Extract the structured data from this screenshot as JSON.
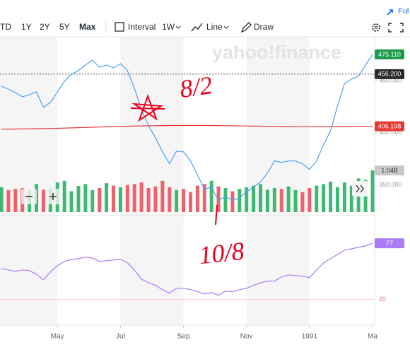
{
  "toolbar": {
    "ranges": [
      "TD",
      "1Y",
      "2Y",
      "5Y",
      "Max"
    ],
    "interval_label": "Interval",
    "interval": "1W",
    "chart_style": "Line",
    "draw": "Draw",
    "fullscreen": "Ful"
  },
  "watermark": "yahoo!finance",
  "annotations": [
    "8/2",
    "10/8"
  ],
  "chart_data": [
    {
      "type": "line",
      "categories": [
        null,
        null,
        null,
        null,
        null,
        null,
        null,
        null,
        "May",
        null,
        null,
        null,
        null,
        null,
        null,
        null,
        null,
        "Jul",
        null,
        null,
        null,
        null,
        null,
        null,
        null,
        null,
        "Sep",
        null,
        null,
        null,
        null,
        null,
        null,
        null,
        null,
        "Nov",
        null,
        null,
        null,
        null,
        null,
        null,
        null,
        null,
        "1991",
        null,
        null,
        null,
        null,
        null,
        null,
        null,
        null,
        "Ma"
      ],
      "series": [
        {
          "color": "#4a9ff5",
          "values": [
            444.6,
            441.9,
            438.5,
            434.5,
            436.5,
            439.2,
            424.3,
            429.1,
            439.2,
            449.3,
            456.1,
            459.5,
            464.9,
            469.6,
            462.8,
            464.9,
            462.2,
            466.2,
            459.5,
            442.6,
            422.3,
            406.8,
            395.3,
            381.8,
            370.3,
            382.4,
            381.8,
            373,
            359.5,
            345.9,
            348,
            335.1,
            339.2,
            335.1,
            337.8,
            343.2,
            348,
            352.7,
            361.5,
            373,
            371.6,
            373,
            373,
            370.3,
            364.9,
            373,
            388.5,
            402,
            425.7,
            447.3,
            451.4,
            454.1,
            464.9,
            475.11
          ]
        },
        {
          "color": "#e53935",
          "values": [
            403.4,
            403.5,
            403.6,
            403.7,
            403.8,
            403.9,
            404,
            404.1,
            404.3,
            404.5,
            404.7,
            404.9,
            405.1,
            405.3,
            405.5,
            405.7,
            405.9,
            406.1,
            406.3,
            406.5,
            406.6,
            406.7,
            406.8,
            406.9,
            406.9,
            407,
            407,
            407,
            407,
            407,
            406.9,
            406.9,
            406.8,
            406.7,
            406.6,
            406.5,
            406.4,
            406.3,
            406.2,
            406.1,
            406,
            405.9,
            405.8,
            405.8,
            405.8,
            405.8,
            405.8,
            405.9,
            405.9,
            406,
            406,
            406.1,
            406.1,
            406.198
          ]
        }
      ],
      "ylim": [
        324,
        492
      ],
      "yticks": [
        {
          "value": 350,
          "label": "350.000"
        },
        {
          "value": 400,
          "label": "400.000"
        },
        {
          "value": 450,
          "label": "450.000"
        }
      ],
      "tags": [
        {
          "value": 475.11,
          "label": "475.110",
          "color": "#1a9c4a"
        },
        {
          "value": 456.2,
          "label": "456.200",
          "color": "#2b2b2b",
          "dashed": true
        },
        {
          "value": 406.198,
          "label": "406.198",
          "color": "#e53935"
        }
      ]
    },
    {
      "type": "bar",
      "values": [
        0.62,
        0.55,
        0.58,
        0.6,
        0.54,
        0.7,
        0.56,
        0.58,
        0.74,
        0.78,
        0.52,
        0.65,
        0.7,
        0.55,
        0.6,
        0.72,
        0.66,
        0.62,
        0.68,
        0.7,
        0.74,
        0.6,
        0.64,
        0.78,
        0.62,
        0.55,
        0.58,
        0.5,
        0.66,
        0.7,
        0.78,
        0.64,
        0.6,
        0.52,
        0.58,
        0.62,
        0.66,
        0.7,
        0.56,
        0.6,
        0.58,
        0.64,
        0.55,
        0.5,
        0.6,
        0.66,
        0.7,
        0.76,
        0.62,
        0.74,
        0.66,
        0.84,
        0.8,
        1.04
      ],
      "up_color": "#3fb872",
      "down_color": "#f0616d",
      "ylim": [
        0,
        1.2
      ],
      "tags": [
        {
          "value": 1.04,
          "label": "1.04B",
          "color": "#c9c9c9"
        }
      ]
    },
    {
      "type": "line",
      "series": [
        {
          "color": "#a97cf5",
          "values": [
            51.4,
            50,
            48.6,
            50,
            49.3,
            45.7,
            40,
            47.9,
            54.3,
            58.6,
            60.7,
            61.4,
            62.9,
            62.1,
            58.6,
            59.3,
            60,
            60.7,
            57.1,
            50,
            40.7,
            37.1,
            34.3,
            30,
            26.4,
            31.4,
            31.4,
            30,
            27.9,
            25.7,
            27.1,
            24.3,
            28.6,
            27.9,
            30,
            31.4,
            34.3,
            37.1,
            38.6,
            38.6,
            42.9,
            45,
            44.3,
            43.6,
            42.1,
            50,
            57.1,
            61.4,
            65.7,
            70,
            71.4,
            72.9,
            74.3,
            77
          ]
        }
      ],
      "ylim": [
        -6,
        105
      ],
      "yticks": [
        20
      ],
      "tags": [
        {
          "value": 77,
          "label": "77",
          "color": "#a97cf5"
        }
      ]
    }
  ]
}
